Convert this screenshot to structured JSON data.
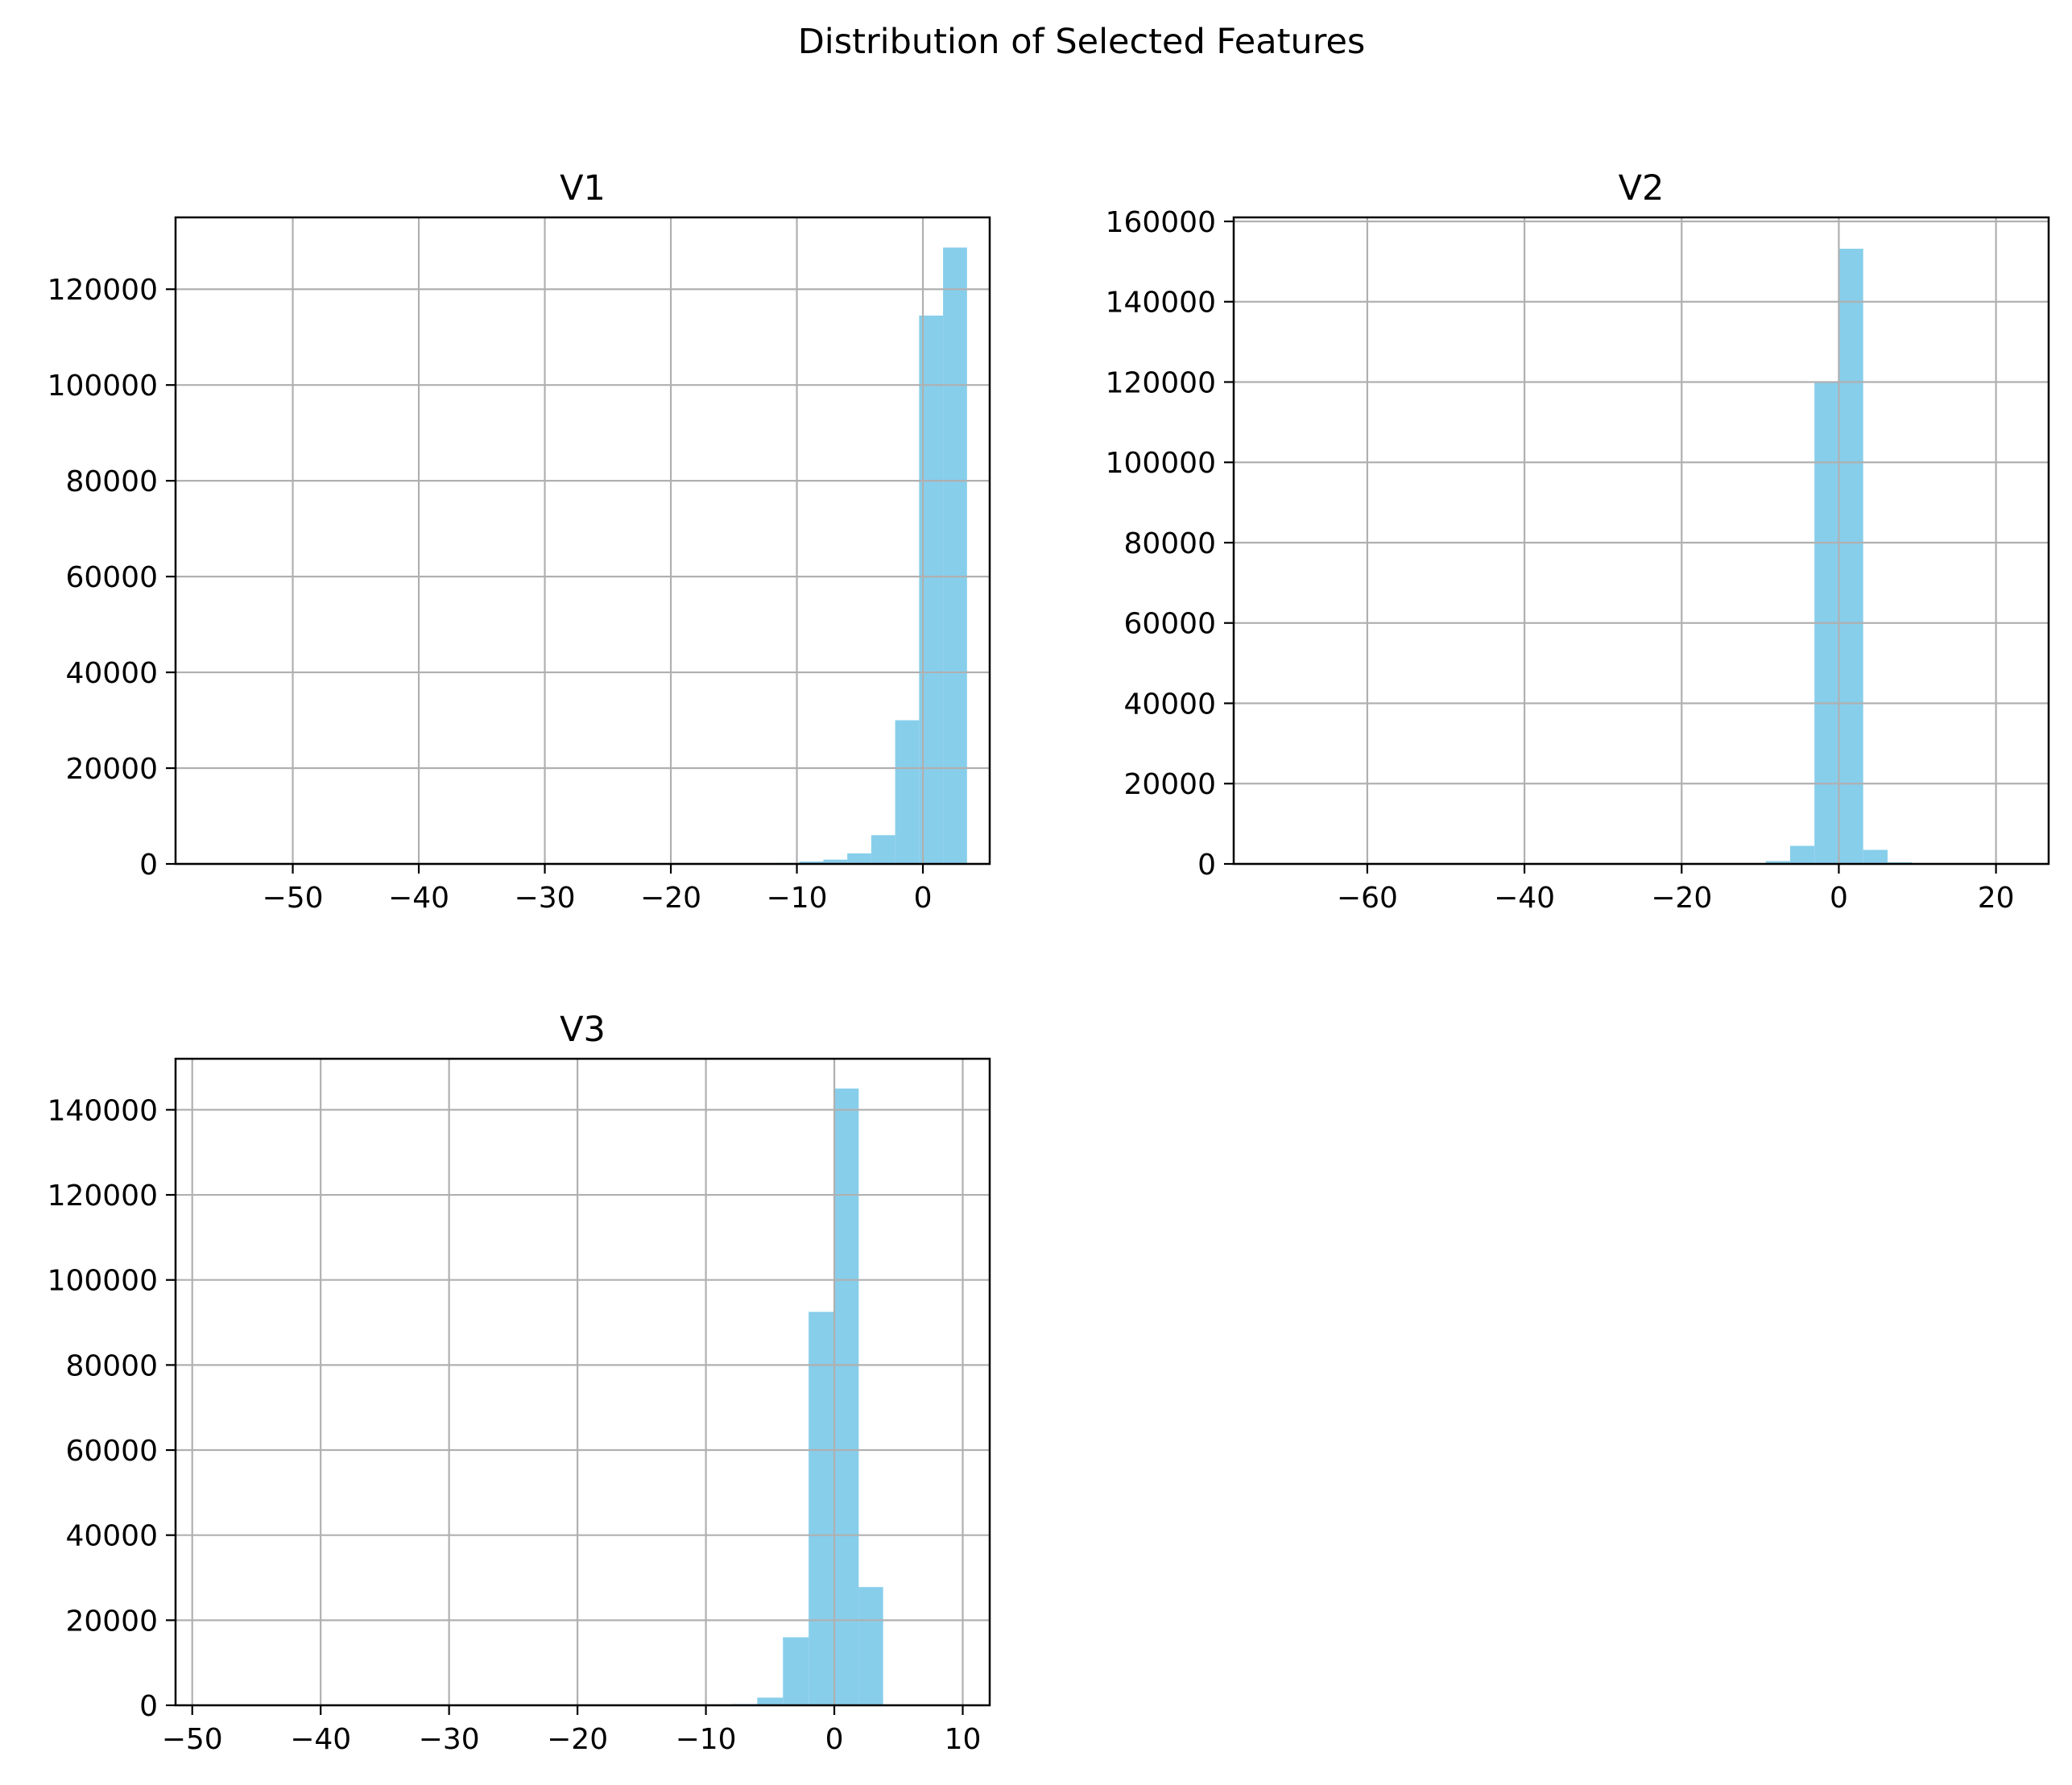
{
  "figure": {
    "title": "Distribution of Selected Features"
  },
  "chart_data": [
    {
      "type": "bar",
      "subtype": "histogram",
      "title": "V1",
      "xlabel": "",
      "ylabel": "",
      "xlim": [
        -59.3,
        5.3
      ],
      "ylim": [
        0,
        135000
      ],
      "xticks": [
        -50,
        -40,
        -30,
        -20,
        -10,
        0
      ],
      "xtick_labels": [
        "−50",
        "−40",
        "−30",
        "−20",
        "−10",
        "0"
      ],
      "yticks": [
        0,
        20000,
        40000,
        60000,
        80000,
        100000,
        120000
      ],
      "ytick_labels": [
        "0",
        "20000",
        "40000",
        "60000",
        "80000",
        "100000",
        "120000"
      ],
      "grid": true,
      "color": "#87ceeb",
      "bin_edges": [
        -11.7,
        -9.8,
        -7.9,
        -6.0,
        -4.1,
        -2.2,
        -0.3,
        1.6,
        3.5
      ],
      "values": [
        200,
        500,
        900,
        2200,
        6000,
        30000,
        114500,
        128700
      ]
    },
    {
      "type": "bar",
      "subtype": "histogram",
      "title": "V2",
      "xlabel": "",
      "ylabel": "",
      "xlim": [
        -77.0,
        26.7
      ],
      "ylim": [
        0,
        161000
      ],
      "xticks": [
        -60,
        -40,
        -20,
        0,
        20
      ],
      "xtick_labels": [
        "−60",
        "−40",
        "−20",
        "0",
        "20"
      ],
      "yticks": [
        0,
        20000,
        40000,
        60000,
        80000,
        100000,
        120000,
        140000,
        160000
      ],
      "ytick_labels": [
        "0",
        "20000",
        "40000",
        "60000",
        "80000",
        "100000",
        "120000",
        "140000",
        "160000"
      ],
      "grid": true,
      "color": "#87ceeb",
      "bin_edges": [
        -9.3,
        -6.2,
        -3.1,
        0.0,
        3.1,
        6.2,
        9.3
      ],
      "values": [
        700,
        4500,
        119800,
        153200,
        3500,
        400
      ]
    },
    {
      "type": "bar",
      "subtype": "histogram",
      "title": "V3",
      "xlabel": "",
      "ylabel": "",
      "xlim": [
        -51.3,
        12.1
      ],
      "ylim": [
        0,
        152000
      ],
      "xticks": [
        -50,
        -40,
        -30,
        -20,
        -10,
        0,
        10
      ],
      "xtick_labels": [
        "−50",
        "−40",
        "−30",
        "−20",
        "−10",
        "0",
        "10"
      ],
      "yticks": [
        0,
        20000,
        40000,
        60000,
        80000,
        100000,
        120000,
        140000
      ],
      "ytick_labels": [
        "0",
        "20000",
        "40000",
        "60000",
        "80000",
        "100000",
        "120000",
        "140000"
      ],
      "grid": true,
      "color": "#87ceeb",
      "bin_edges": [
        -8.0,
        -6.0,
        -4.0,
        -2.0,
        0.0,
        1.9,
        3.8
      ],
      "values": [
        300,
        1800,
        16000,
        92500,
        145000,
        27800
      ]
    }
  ]
}
